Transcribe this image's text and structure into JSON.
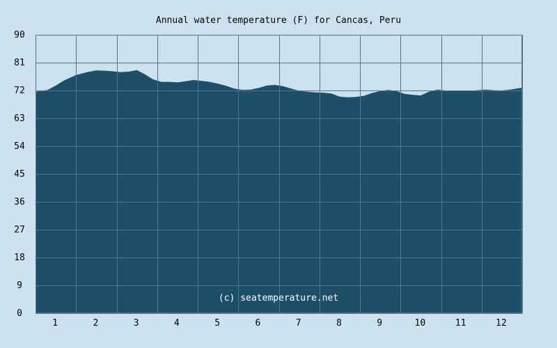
{
  "chart_data": {
    "type": "area",
    "title": "Annual water temperature (F) for Cancas, Peru",
    "xlabel": "",
    "ylabel": "",
    "x_ticks": [
      "1",
      "2",
      "3",
      "4",
      "5",
      "6",
      "7",
      "8",
      "9",
      "10",
      "11",
      "12"
    ],
    "xlim": [
      0.5,
      12.5
    ],
    "ylim": [
      0,
      90
    ],
    "y_ticks": [
      0,
      9,
      18,
      27,
      36,
      45,
      54,
      63,
      72,
      81,
      90
    ],
    "grid": true,
    "x": [
      0.5,
      0.8,
      1.0,
      1.2,
      1.5,
      1.8,
      2.0,
      2.2,
      2.4,
      2.6,
      2.8,
      3.0,
      3.2,
      3.4,
      3.6,
      3.8,
      4.0,
      4.2,
      4.4,
      4.6,
      4.8,
      5.0,
      5.2,
      5.4,
      5.6,
      5.8,
      6.0,
      6.2,
      6.4,
      6.6,
      6.8,
      7.0,
      7.2,
      7.4,
      7.6,
      7.8,
      8.0,
      8.2,
      8.4,
      8.6,
      8.8,
      9.0,
      9.2,
      9.4,
      9.6,
      9.8,
      10.0,
      10.2,
      10.4,
      10.6,
      10.8,
      11.0,
      11.2,
      11.4,
      11.6,
      11.8,
      12.0,
      12.2,
      12.5
    ],
    "values": [
      71.6,
      72.2,
      73.6,
      75.2,
      77.0,
      78.0,
      78.5,
      78.4,
      78.2,
      77.9,
      78.1,
      78.6,
      77.2,
      75.6,
      74.8,
      74.8,
      74.6,
      75.0,
      75.4,
      75.1,
      74.8,
      74.2,
      73.5,
      72.6,
      72.2,
      72.3,
      72.8,
      73.6,
      73.8,
      73.4,
      72.6,
      71.9,
      71.6,
      71.4,
      71.3,
      71.0,
      70.0,
      69.8,
      69.9,
      70.3,
      71.2,
      71.8,
      72.2,
      71.8,
      70.9,
      70.6,
      70.4,
      71.6,
      72.3,
      72.0,
      71.9,
      71.8,
      71.8,
      72.1,
      72.3,
      72.1,
      72.0,
      72.3,
      72.9
    ],
    "area_color": "#1e4f69",
    "grid_color": "#56748a",
    "background_color": "#cce3ef",
    "credit": "(c) seatemperature.net"
  }
}
